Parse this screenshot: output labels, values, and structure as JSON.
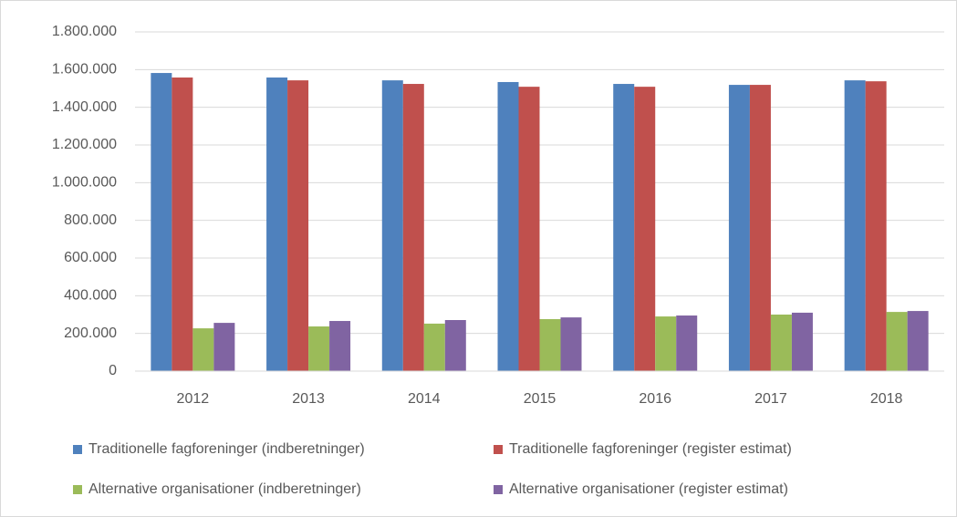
{
  "chart_data": {
    "type": "bar",
    "categories": [
      "2012",
      "2013",
      "2014",
      "2015",
      "2016",
      "2017",
      "2018"
    ],
    "series": [
      {
        "name": "Traditionelle fagforeninger (indberetninger)",
        "color": "#4f81bd",
        "values": [
          1582000,
          1558000,
          1543000,
          1534000,
          1524000,
          1519000,
          1543000
        ]
      },
      {
        "name": "Traditionelle fagforeninger (register estimat)",
        "color": "#c0504d",
        "values": [
          1558000,
          1543000,
          1524000,
          1509000,
          1509000,
          1519000,
          1538000
        ]
      },
      {
        "name": "Alternative organisationer (indberetninger)",
        "color": "#9bbb59",
        "values": [
          227000,
          237000,
          252000,
          276000,
          290000,
          300000,
          314000
        ]
      },
      {
        "name": "Alternative organisationer (register estimat)",
        "color": "#8064a2",
        "values": [
          256000,
          266000,
          271000,
          285000,
          295000,
          310000,
          319000
        ]
      }
    ],
    "ylim": [
      0,
      1800000
    ],
    "yticks": [
      0,
      {
        "value": 200000,
        "label": "200.000"
      },
      {
        "value": 400000,
        "label": "400.000"
      },
      {
        "value": 600000,
        "label": "600.000"
      },
      {
        "value": 800000,
        "label": "800.000"
      },
      {
        "value": 1000000,
        "label": "1.000.000"
      },
      {
        "value": 1200000,
        "label": "1.200.000"
      },
      {
        "value": 1400000,
        "label": "1.400.000"
      },
      {
        "value": 1600000,
        "label": "1.600.000"
      },
      {
        "value": 1800000,
        "label": "1.800.000"
      }
    ],
    "grid": true,
    "legend": "bottom"
  }
}
